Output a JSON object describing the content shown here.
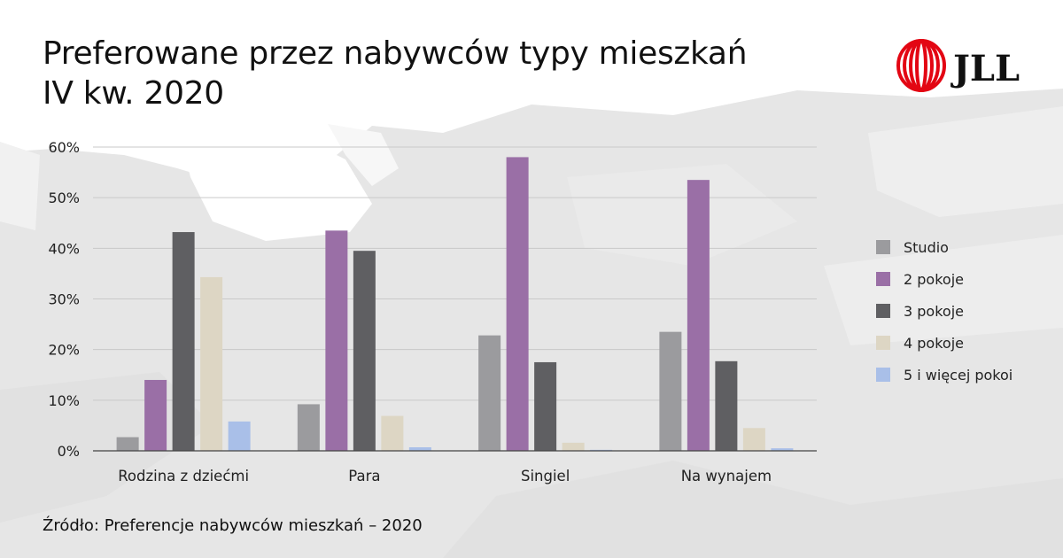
{
  "header": {
    "title_line1": "Preferowane przez nabywców typy mieszkań",
    "title_line2": "IV kw. 2020"
  },
  "logo": {
    "text": "JLL",
    "color": "#e30613"
  },
  "footer": {
    "source": "Źródło: Preferencje nabywców mieszkań – 2020"
  },
  "chart_data": {
    "type": "bar",
    "title": "Preferowane przez nabywców typy mieszkań IV kw. 2020",
    "categories": [
      "Rodzina z dziećmi",
      "Para",
      "Singiel",
      "Na wynajem"
    ],
    "yticks": [
      "0%",
      "10%",
      "20%",
      "30%",
      "40%",
      "50%",
      "60%"
    ],
    "ylim": [
      0,
      60
    ],
    "grid": true,
    "legend_position": "right",
    "series": [
      {
        "name": "Studio",
        "color": "#9b9b9e",
        "values": [
          2.7,
          9.2,
          22.8,
          23.5
        ]
      },
      {
        "name": "2 pokoje",
        "color": "#9a6fa6",
        "values": [
          14.0,
          43.5,
          58.0,
          53.5
        ]
      },
      {
        "name": "3 pokoje",
        "color": "#5f5f62",
        "values": [
          43.2,
          39.5,
          17.5,
          17.7
        ]
      },
      {
        "name": "4 pokoje",
        "color": "#ddd6c4",
        "values": [
          34.3,
          6.9,
          1.6,
          4.5
        ]
      },
      {
        "name": "5 i więcej pokoi",
        "color": "#a9bfe8",
        "values": [
          5.8,
          0.7,
          0.2,
          0.5
        ]
      }
    ]
  }
}
